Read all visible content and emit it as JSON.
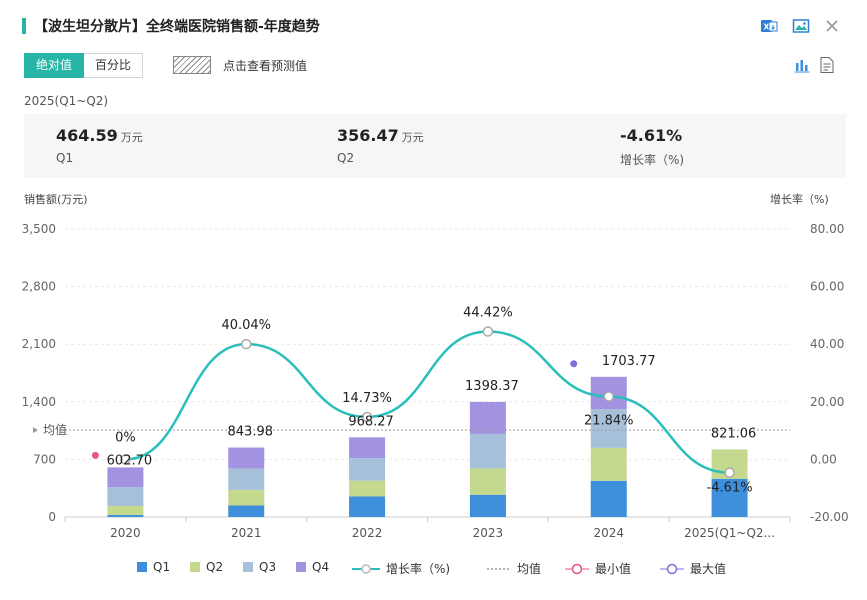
{
  "header": {
    "title": "【波生坦分散片】全终端医院销售额-年度趋势",
    "tools": [
      {
        "name": "excel-export",
        "icon": "excel-icon"
      },
      {
        "name": "image-export",
        "icon": "image-icon"
      },
      {
        "name": "close",
        "icon": "close-icon"
      }
    ]
  },
  "tabs": [
    {
      "label": "绝对值",
      "active": true
    },
    {
      "label": "百分比",
      "active": false
    }
  ],
  "forecast_label": "点击查看预测值",
  "view_tools": [
    {
      "name": "chart-view",
      "icon": "bar-chart-icon"
    },
    {
      "name": "table-view",
      "icon": "document-icon"
    }
  ],
  "period": "2025(Q1~Q2)",
  "stats": [
    {
      "value": "464.59",
      "unit": "万元",
      "label": "Q1"
    },
    {
      "value": "356.47",
      "unit": "万元",
      "label": "Q2"
    },
    {
      "value": "-4.61%",
      "unit": "",
      "label": "增长率（%)"
    }
  ],
  "colors": {
    "accent": "#26b5a7",
    "Q1": "#3d8fdb",
    "Q2": "#c4d98e",
    "Q3": "#a7c0da",
    "Q4": "#a292e0",
    "growth": "#2bbfbc",
    "min": "#e8528d",
    "max": "#7a6fdb"
  },
  "chart_data": {
    "type": "bar",
    "stacked": true,
    "categories": [
      "2020",
      "2021",
      "2022",
      "2023",
      "2024",
      "2025(Q1~Q2..."
    ],
    "series": [
      {
        "name": "Q1",
        "values": [
          24,
          140,
          250,
          270,
          440,
          464.59
        ]
      },
      {
        "name": "Q2",
        "values": [
          110,
          190,
          190,
          320,
          400,
          356.47
        ]
      },
      {
        "name": "Q3",
        "values": [
          230,
          260,
          275,
          420,
          470,
          0
        ]
      },
      {
        "name": "Q4",
        "values": [
          238.7,
          253.98,
          253.27,
          388.37,
          393.77,
          0
        ]
      }
    ],
    "totals": [
      602.7,
      843.98,
      968.27,
      1398.37,
      1703.77,
      821.06
    ],
    "total_labels": [
      "602.70",
      "843.98",
      "968.27",
      "1398.37",
      "1703.77",
      "821.06"
    ],
    "growth": {
      "name": "增长率（%)",
      "values": [
        0,
        40.04,
        14.73,
        44.42,
        21.84,
        -4.61
      ],
      "labels": [
        "0%",
        "40.04%",
        "14.73%",
        "44.42%",
        "21.84%",
        "-4.61%"
      ]
    },
    "mean": {
      "name": "均值",
      "label": "均值",
      "value": 1056.4
    },
    "min_name": "最小值",
    "max_name": "最大值",
    "ylabel": "销售额(万元)",
    "y2label": "增长率（%)",
    "ylim": [
      0,
      3500
    ],
    "y_ticks": [
      "0",
      "700",
      "1,400",
      "2,100",
      "2,800",
      "3,500"
    ],
    "y2lim": [
      -20,
      80
    ],
    "y2_ticks": [
      "-20.00",
      "0.00",
      "20.00",
      "40.00",
      "60.00",
      "80.00"
    ],
    "grid": true,
    "legend_position": "bottom"
  }
}
